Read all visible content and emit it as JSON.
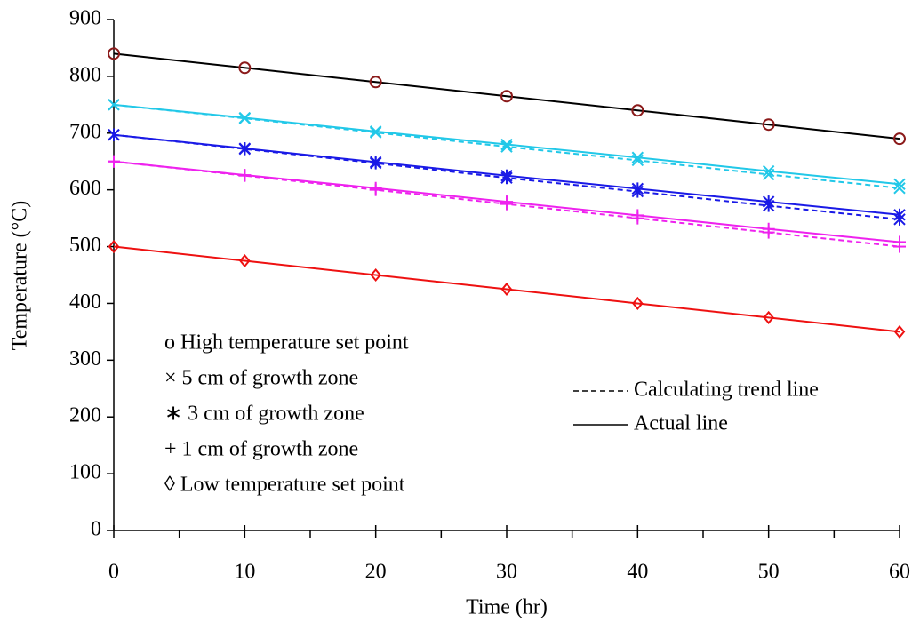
{
  "chart_data": {
    "type": "line",
    "x_label": "Time (hr)",
    "y_label": "Temperature (°C)",
    "x": [
      0,
      10,
      20,
      30,
      40,
      50,
      60
    ],
    "xlim": [
      0,
      60
    ],
    "xticks": [
      0,
      10,
      20,
      30,
      40,
      50,
      60
    ],
    "ylim": [
      0,
      900
    ],
    "yticks": [
      0,
      100,
      200,
      300,
      400,
      500,
      600,
      700,
      800,
      900
    ],
    "series": [
      {
        "name": "o High temperature set point",
        "marker": "circle",
        "color": "#8b1a1a",
        "line_color": "#000000",
        "values": [
          840,
          815,
          790,
          765,
          740,
          715,
          690
        ]
      },
      {
        "name": "× 5 cm of growth zone",
        "marker": "x",
        "color": "#22c8e8",
        "line_color": "#22c8e8",
        "values": [
          750,
          727,
          703,
          680,
          657,
          633,
          610
        ],
        "trend": [
          750,
          726,
          701,
          676,
          652,
          627,
          603
        ]
      },
      {
        "name": "∗ 3 cm of growth zone",
        "marker": "asterisk",
        "color": "#1a1ae6",
        "line_color": "#1a1ae6",
        "values": [
          697,
          673,
          649,
          625,
          602,
          579,
          556
        ],
        "trend": [
          697,
          672,
          647,
          621,
          597,
          572,
          548
        ]
      },
      {
        "name": "+ 1 cm of growth zone",
        "marker": "plus",
        "color": "#ee22ee",
        "line_color": "#ee22ee",
        "values": [
          650,
          626,
          603,
          579,
          555,
          531,
          508
        ],
        "trend": [
          650,
          625,
          600,
          575,
          550,
          525,
          500
        ]
      },
      {
        "name": "◊ Low temperature set point",
        "marker": "diamond",
        "color": "#ee1111",
        "line_color": "#ee1111",
        "values": [
          500,
          475,
          450,
          425,
          400,
          375,
          350
        ]
      }
    ],
    "line_legend": {
      "trend": "Calculating trend line",
      "actual": "Actual line"
    }
  }
}
